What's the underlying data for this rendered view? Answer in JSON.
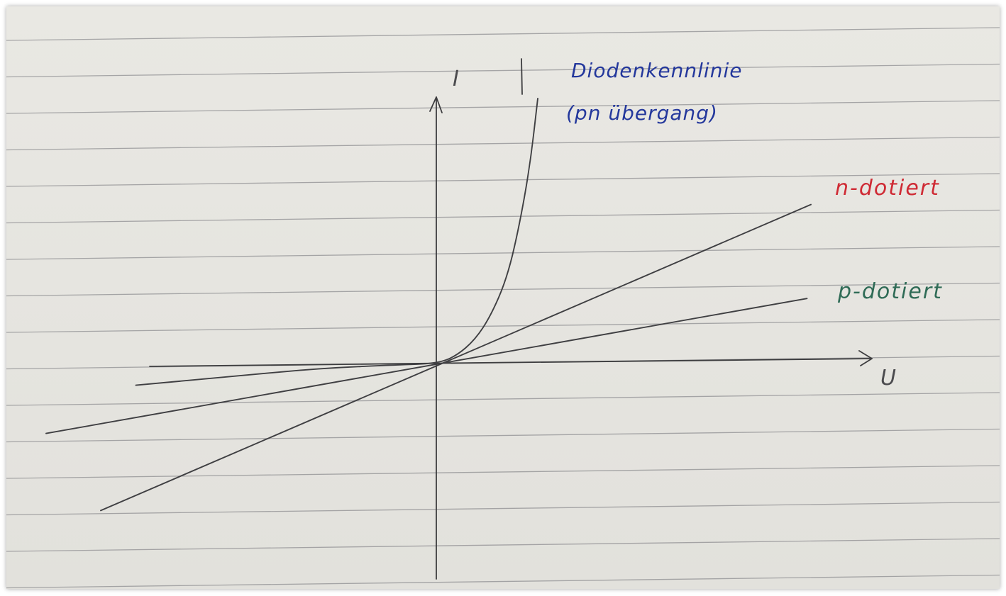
{
  "chart_data": {
    "type": "line",
    "title": "",
    "xlabel": "U",
    "ylabel": "I",
    "xlim": [
      -10,
      10
    ],
    "ylim": [
      -10,
      10
    ],
    "grid": false,
    "legend": "labels at line ends (right)",
    "series": [
      {
        "name": "Diodenkennlinie",
        "name_line2": "(pn übergang)",
        "color": "#24389c",
        "x": [
          -7.7,
          -5.0,
          -3.0,
          -1.0,
          0.0,
          0.5,
          1.0,
          1.4,
          1.8,
          2.1,
          2.4,
          2.6
        ],
        "y": [
          -0.9,
          -0.5,
          -0.2,
          -0.05,
          0.0,
          0.3,
          1.0,
          2.0,
          3.5,
          5.5,
          8.2,
          11.0
        ]
      },
      {
        "name": "n-dotiert",
        "color": "#cf2a34",
        "x": [
          -8.6,
          9.6
        ],
        "y": [
          -6.1,
          6.6
        ]
      },
      {
        "name": "p-dotiert",
        "color": "#2f6b56",
        "x": [
          -10.0,
          9.5
        ],
        "y": [
          -2.9,
          2.7
        ]
      }
    ]
  }
}
